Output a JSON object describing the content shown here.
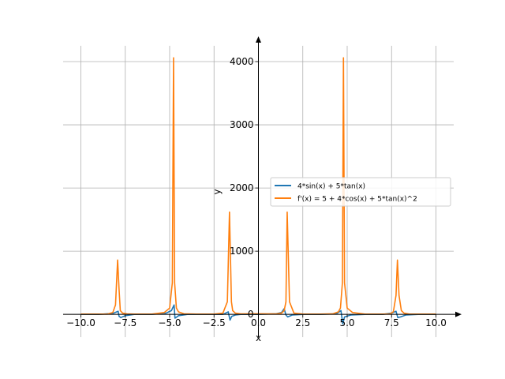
{
  "chart_data": {
    "type": "line",
    "xlabel": "x",
    "ylabel": "y",
    "xlim": [
      -11,
      11
    ],
    "ylim": [
      -360,
      4350
    ],
    "grid": true,
    "legend_position": "center-right",
    "xticks": [
      -10,
      -7.5,
      -5,
      -2.5,
      0,
      2.5,
      5,
      7.5,
      10
    ],
    "xtick_labels": [
      "−10.0",
      "−7.5",
      "−5.0",
      "−2.5",
      "0.0",
      "2.5",
      "5.0",
      "7.5",
      "10.0"
    ],
    "yticks": [
      0,
      1000,
      2000,
      3000,
      4000
    ],
    "ytick_labels": [
      "0",
      "1000",
      "2000",
      "3000",
      "4000"
    ],
    "series": [
      {
        "name": "4*sin(x) + 5*tan(x)",
        "color": "#1f77b4",
        "x": [
          -10,
          -9,
          -8.2,
          -7.9,
          -7.85,
          -7.75,
          -7.5,
          -7,
          -6,
          -5.2,
          -4.9,
          -4.75,
          -4.7,
          -4.5,
          -4,
          -3,
          -2,
          -1.7,
          -1.6,
          -1.5,
          -1.3,
          -1,
          0,
          1,
          1.3,
          1.45,
          1.55,
          1.65,
          1.9,
          2.5,
          3.5,
          4.4,
          4.65,
          4.75,
          4.85,
          5.2,
          6,
          7,
          7.5,
          7.75,
          7.85,
          8.0,
          8.3,
          9,
          10
        ],
        "y": [
          0,
          0,
          15,
          50,
          -30,
          -50,
          -20,
          0,
          0,
          20,
          60,
          150,
          -60,
          -20,
          0,
          0,
          0,
          40,
          -90,
          -30,
          -10,
          0,
          0,
          10,
          30,
          90,
          -10,
          -40,
          -10,
          0,
          0,
          10,
          60,
          -150,
          -40,
          -10,
          0,
          0,
          20,
          50,
          -50,
          -40,
          -10,
          0,
          0
        ]
      },
      {
        "name": "f'(x) = 5 + 4*cos(x) + 5*tan(x)^2",
        "color": "#ff7f0e",
        "x": [
          -10,
          -8.5,
          -8.2,
          -8.05,
          -7.93,
          -7.85,
          -7.78,
          -7.65,
          -7.4,
          -7,
          -6,
          -5.3,
          -5.0,
          -4.85,
          -4.78,
          -4.72,
          -4.62,
          -4.5,
          -4.2,
          -3.5,
          -2.5,
          -2.0,
          -1.75,
          -1.63,
          -1.52,
          -1.45,
          -1.3,
          -1.0,
          0,
          1.0,
          1.3,
          1.45,
          1.55,
          1.62,
          1.75,
          2.0,
          2.5,
          3.5,
          4.2,
          4.5,
          4.62,
          4.73,
          4.79,
          4.85,
          5.0,
          5.3,
          6,
          7,
          7.4,
          7.6,
          7.75,
          7.83,
          7.92,
          8.05,
          8.2,
          8.5,
          10
        ],
        "y": [
          5,
          5,
          30,
          150,
          860,
          400,
          60,
          20,
          8,
          5,
          5,
          30,
          100,
          500,
          4060,
          500,
          100,
          40,
          10,
          5,
          5,
          20,
          200,
          1620,
          200,
          60,
          20,
          8,
          9,
          8,
          20,
          60,
          200,
          1620,
          200,
          20,
          5,
          5,
          10,
          40,
          100,
          500,
          4060,
          500,
          100,
          30,
          5,
          5,
          8,
          40,
          300,
          860,
          300,
          60,
          20,
          5,
          5
        ]
      }
    ]
  }
}
